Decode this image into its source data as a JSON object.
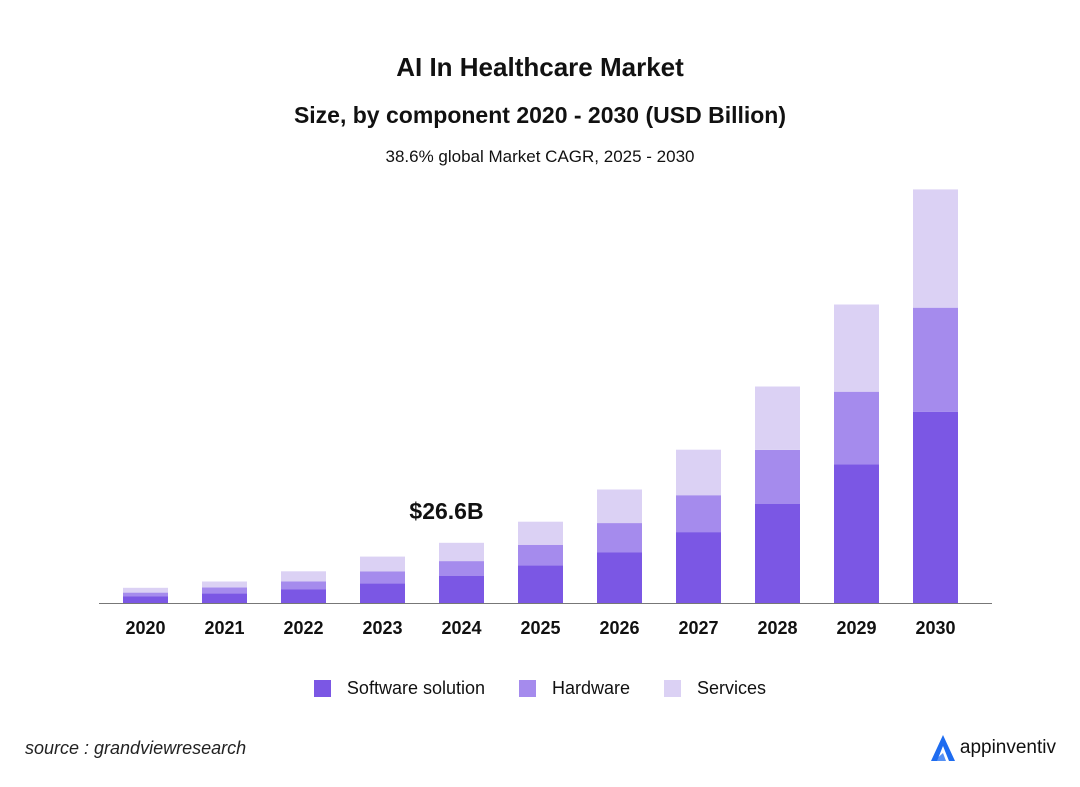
{
  "chart_data": {
    "type": "bar",
    "stacked": true,
    "title": "AI In Healthcare Market",
    "subtitle": "Size, by component 2020 - 2030 (USD Billion)",
    "note": "38.6% global Market CAGR, 2025 - 2030",
    "categories": [
      "2020",
      "2021",
      "2022",
      "2023",
      "2024",
      "2025",
      "2026",
      "2027",
      "2028",
      "2029",
      "2030"
    ],
    "series": [
      {
        "name": "Software solution",
        "color": "#7b57e4",
        "values": [
          2.9,
          4.3,
          6.0,
          8.7,
          11.9,
          16.6,
          22.3,
          31.3,
          43.7,
          61.3,
          84.4
        ]
      },
      {
        "name": "Hardware",
        "color": "#a58bed",
        "values": [
          1.7,
          2.6,
          3.6,
          5.2,
          6.6,
          9.1,
          13.0,
          16.3,
          23.9,
          32.0,
          46.0
        ]
      },
      {
        "name": "Services",
        "color": "#dbd1f4",
        "values": [
          2.1,
          2.6,
          4.4,
          6.6,
          8.1,
          10.2,
          14.8,
          20.1,
          28.0,
          38.5,
          52.2
        ]
      }
    ],
    "annotation": {
      "category": "2024",
      "label": "$26.6B"
    },
    "ylim": [
      0,
      185
    ],
    "grid": false,
    "legend": "bottom-center"
  },
  "footer": {
    "source": "source : grandviewresearch",
    "brand": "appinventiv",
    "brand_color": "#1e6cf0"
  }
}
